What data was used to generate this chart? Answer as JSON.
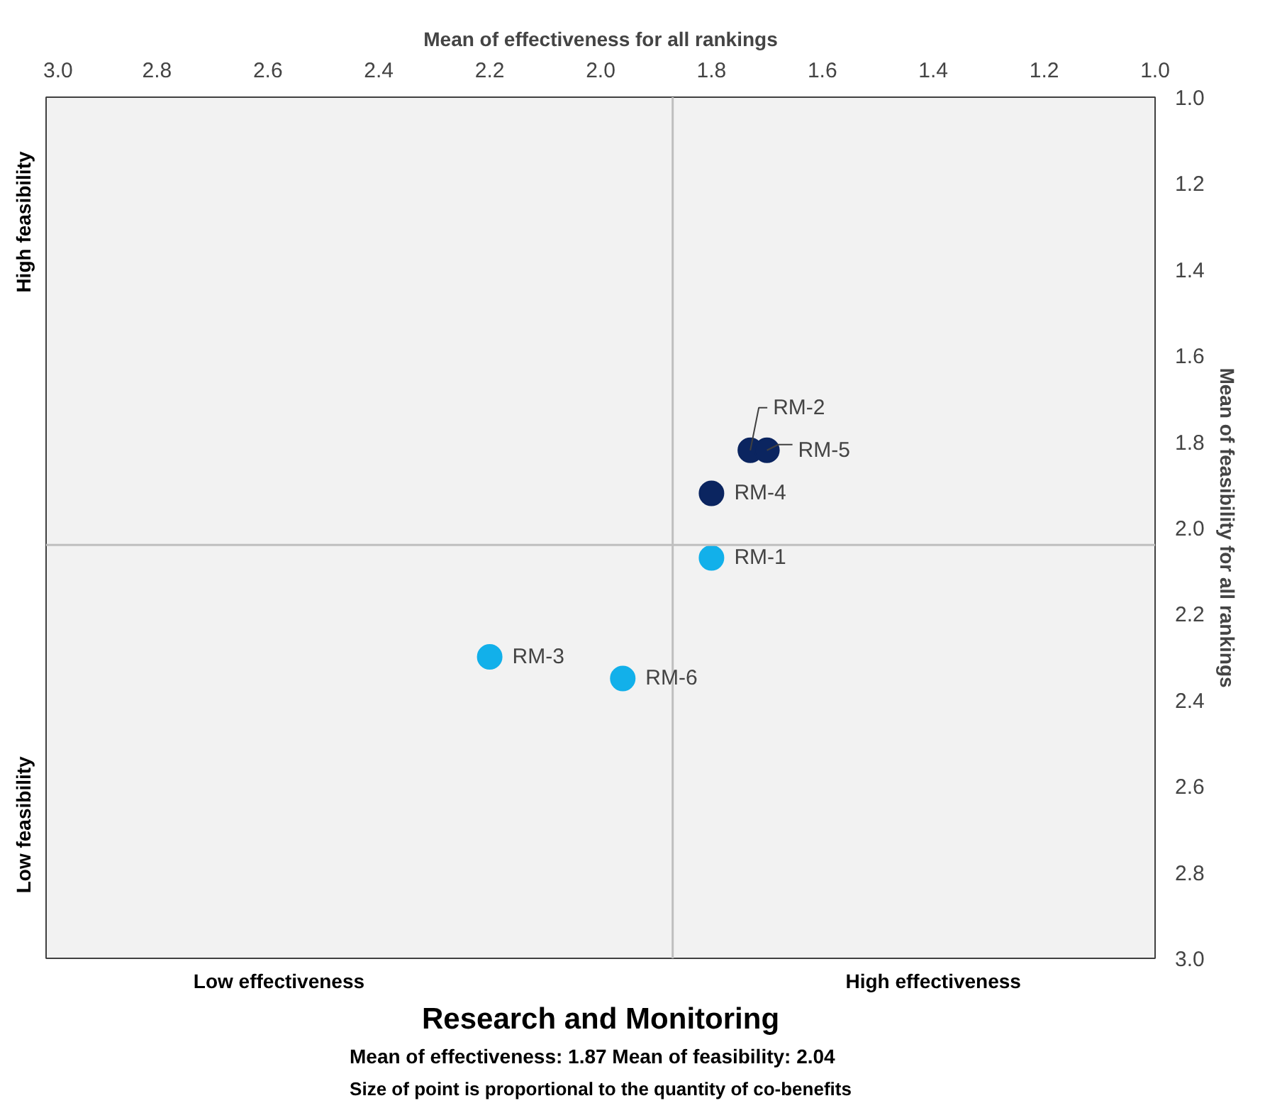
{
  "chart_data": {
    "type": "scatter",
    "title": "Research and Monitoring",
    "subtitle": "Mean of effectiveness: 1.87    Mean of feasibility: 2.04",
    "xlabel": "Mean of effectiveness for all rankings",
    "ylabel": "Mean of feasibility for all rankings",
    "xlim": [
      3.0,
      1.0
    ],
    "ylim": [
      3.0,
      1.0
    ],
    "xticks": [
      {
        "value": 3.0,
        "label": "3.0"
      },
      {
        "value": 2.8,
        "label": "2.8"
      },
      {
        "value": 2.6,
        "label": "2.6"
      },
      {
        "value": 2.4,
        "label": "2.4"
      },
      {
        "value": 2.2,
        "label": "2.2"
      },
      {
        "value": 2.0,
        "label": "2.0"
      },
      {
        "value": 1.8,
        "label": "1.8"
      },
      {
        "value": 1.6,
        "label": "1.6"
      },
      {
        "value": 1.4,
        "label": "1.4"
      },
      {
        "value": 1.2,
        "label": "1.2"
      },
      {
        "value": 1.0,
        "label": "1.0"
      }
    ],
    "yticks": [
      {
        "value": 1.0,
        "label": "1.0"
      },
      {
        "value": 1.2,
        "label": "1.2"
      },
      {
        "value": 1.4,
        "label": "1.4"
      },
      {
        "value": 1.6,
        "label": "1.6"
      },
      {
        "value": 1.8,
        "label": "1.8"
      },
      {
        "value": 2.0,
        "label": "2.0"
      },
      {
        "value": 2.2,
        "label": "2.2"
      },
      {
        "value": 2.4,
        "label": "2.4"
      },
      {
        "value": 2.6,
        "label": "2.6"
      },
      {
        "value": 2.8,
        "label": "2.8"
      },
      {
        "value": 3.0,
        "label": "3.0"
      }
    ],
    "marker": "circle",
    "grid": false,
    "series": [
      {
        "color": "#0b2560",
        "x": [
          1.73,
          1.7,
          1.8
        ],
        "values": [
          1.82,
          1.82,
          1.92
        ]
      },
      {
        "color": "#12b0ea",
        "x": [
          1.8,
          2.2,
          1.96
        ],
        "values": [
          2.07,
          2.3,
          2.35
        ]
      }
    ],
    "ref_lines": [
      {
        "axis": "x",
        "value": 1.87,
        "color": "#bfbfbf"
      },
      {
        "axis": "y",
        "value": 2.04,
        "color": "#bfbfbf"
      }
    ],
    "annotations": [
      {
        "text": "RM-2",
        "x": 1.73,
        "y": 1.82
      },
      {
        "text": "RM-5",
        "x": 1.7,
        "y": 1.82
      },
      {
        "text": "RM-4",
        "x": 1.8,
        "y": 1.92
      },
      {
        "text": "RM-1",
        "x": 1.8,
        "y": 2.07
      },
      {
        "text": "RM-3",
        "x": 2.2,
        "y": 2.3
      },
      {
        "text": "RM-6",
        "x": 1.96,
        "y": 2.35
      },
      "High feasibility",
      "Low feasibility",
      "Low effectiveness",
      "High effectiveness",
      "Size of point is proportional to the quantity of co-benefits"
    ]
  }
}
